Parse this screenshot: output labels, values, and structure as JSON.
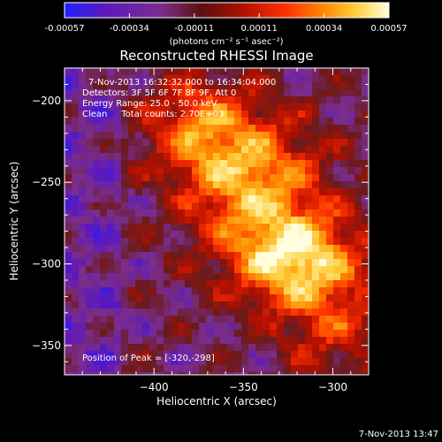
{
  "chart_data": {
    "type": "heatmap",
    "title": "Reconstructed RHESSI Image",
    "xlabel": "Heliocentric X (arcsec)",
    "ylabel": "Heliocentric Y (arcsec)",
    "xlim": [
      -450,
      -280
    ],
    "ylim": [
      -368,
      -180
    ],
    "x_ticks": [
      -400,
      -350,
      -300
    ],
    "y_ticks": [
      -200,
      -250,
      -300,
      -350
    ],
    "colorbar": {
      "min": -0.00057,
      "max": 0.00057,
      "ticks": [
        "-0.00057",
        "-0.00034",
        "-0.00011",
        "0.00011",
        "0.00034",
        "0.00057"
      ],
      "unit_label": "(photons cm⁻² s⁻¹ asec⁻²)",
      "colors": [
        "#2020ff",
        "#5a18c0",
        "#7a2d8c",
        "#6a1a1a",
        "#b01000",
        "#ff3000",
        "#ff8a00",
        "#ffd040",
        "#ffffe0"
      ]
    },
    "info": {
      "time_range": "7-Nov-2013 16:32:32.000 to 16:34:04.000",
      "detectors": "Detectors: 3F 5F 6F 7F 8F 9F, Att 0",
      "energy_range": "Energy Range: 25.0 - 50.0 keV",
      "method": "Clean     Total counts: 2.70E+03"
    },
    "peak_label": "Position of Peak = [-320,-298]",
    "peak": [
      -320,
      -298
    ]
  },
  "footer": {
    "timestamp": "7-Nov-2013 13:47"
  },
  "colors": {
    "background": "#000000",
    "text": "#ffffff"
  }
}
